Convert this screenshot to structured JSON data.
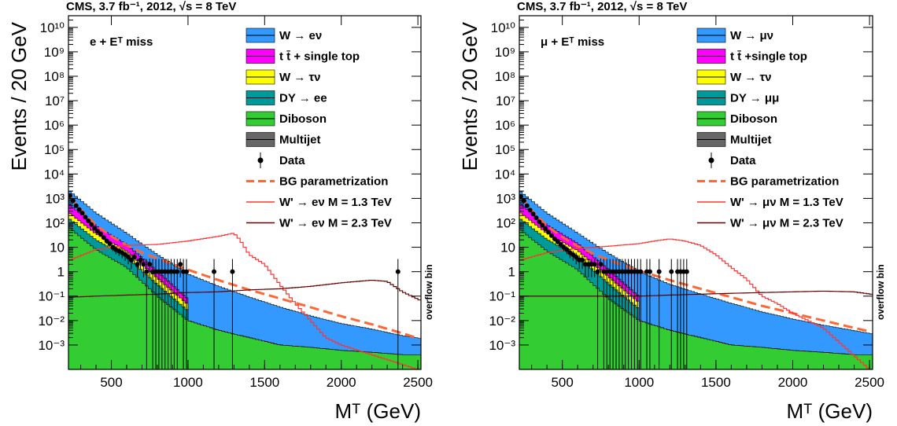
{
  "colors": {
    "w_lnu": "#3399ff",
    "ttbar": "#ff00ff",
    "w_taunu": "#ffff00",
    "dy": "#009999",
    "diboson": "#33cc33",
    "multijet": "#666666",
    "bg_param": "#ff6633",
    "wprime_low": "#ff3333",
    "wprime_high": "#660000",
    "data": "#000000"
  },
  "chart_data": [
    {
      "type": "bar",
      "histtype": "stacked",
      "title": "CMS,  3.7 fb⁻¹,  2012, √s = 8 TeV",
      "channel": "e + Eᵀ miss",
      "xlabel": "Mᵀ (GeV)",
      "ylabel": "Events / 20 GeV",
      "xlim": [
        220,
        2520
      ],
      "ylim": [
        0.0001,
        30000000000
      ],
      "yscale": "log",
      "x_ticks": [
        "500",
        "1000",
        "1500",
        "2000",
        "2500"
      ],
      "y_ticks": [
        "10⁻³",
        "10⁻²",
        "10⁻¹",
        "1",
        "10",
        "10²",
        "10³",
        "10⁴",
        "10⁵",
        "10⁶",
        "10⁷",
        "10⁸",
        "10⁹",
        "10¹⁰"
      ],
      "overflow_label": "overflow bin",
      "legend_position": "top-right",
      "stack": [
        {
          "name": "Diboson",
          "color": "#33cc33",
          "x": [
            230,
            400,
            600,
            800,
            1000,
            1200,
            1400,
            1600,
            1800,
            2000,
            2200,
            2400,
            2510
          ],
          "y": [
            60,
            8,
            1.5,
            0.1,
            0.01,
            0.004,
            0.002,
            0.001,
            0.0008,
            0.0006,
            0.0005,
            0.0004,
            0.0004
          ]
        },
        {
          "name": "DY → ee",
          "color": "#009999",
          "x": [
            230,
            400,
            600,
            800,
            1000
          ],
          "y": [
            80,
            12,
            2.5,
            0.2,
            0.015
          ]
        },
        {
          "name": "W → τν",
          "color": "#ffff00",
          "x": [
            230,
            400,
            600,
            800,
            1000
          ],
          "y": [
            100,
            15,
            3,
            0.25,
            0.02
          ]
        },
        {
          "name": "t t̄ + single top",
          "color": "#ff00ff",
          "x": [
            230,
            400,
            600,
            800,
            1000
          ],
          "y": [
            300,
            40,
            6,
            0.5,
            0.03
          ]
        },
        {
          "name": "W → eν",
          "color": "#3399ff",
          "x": [
            230,
            400,
            600,
            800,
            1000,
            1200,
            1400,
            1600,
            1800,
            2000,
            2200,
            2400,
            2510
          ],
          "y": [
            1400,
            180,
            25,
            4,
            0.8,
            0.25,
            0.09,
            0.035,
            0.015,
            0.007,
            0.004,
            0.002,
            0.0015
          ]
        }
      ],
      "legend": [
        {
          "label": "W → eν",
          "kind": "box",
          "color": "#3399ff"
        },
        {
          "label": "t t̄ + single top",
          "kind": "box",
          "color": "#ff00ff"
        },
        {
          "label": "W → τν",
          "kind": "box",
          "color": "#ffff00"
        },
        {
          "label": "DY → ee",
          "kind": "box",
          "color": "#009999"
        },
        {
          "label": "Diboson",
          "kind": "box",
          "color": "#33cc33"
        },
        {
          "label": "Multijet",
          "kind": "box",
          "color": "#666666"
        },
        {
          "label": "Data",
          "kind": "marker",
          "color": "#000000"
        },
        {
          "label": "BG parametrization",
          "kind": "dash",
          "color": "#ff6633"
        },
        {
          "label": "W' → eν M = 1.3 TeV",
          "kind": "line",
          "color": "#ff3333"
        },
        {
          "label": "W' → eν M = 2.3 TeV",
          "kind": "line",
          "color": "#660000"
        }
      ],
      "series": [
        {
          "name": "BG parametrization",
          "style": "dash",
          "color": "#ff6633",
          "x": [
            230,
            300,
            400,
            500,
            600,
            700,
            800,
            1000,
            1200,
            1400,
            1600,
            1800,
            2000,
            2200,
            2400,
            2510
          ],
          "y": [
            1200,
            350,
            80,
            28,
            12,
            6,
            3.5,
            1.2,
            0.45,
            0.18,
            0.08,
            0.035,
            0.015,
            0.007,
            0.003,
            0.0018
          ]
        },
        {
          "name": "W' → eν M = 1.3 TeV",
          "style": "line",
          "color": "#ff3333",
          "x": [
            230,
            400,
            600,
            800,
            1000,
            1200,
            1300,
            1340,
            1400,
            1500,
            1600,
            1700,
            1800,
            1900,
            2000,
            2500
          ],
          "y": [
            3,
            8,
            12,
            13,
            18,
            28,
            38,
            20,
            5,
            2,
            0.3,
            0.05,
            0.01,
            0.002,
            0.001,
            0.0001
          ]
        },
        {
          "name": "W' → eν M = 2.3 TeV",
          "style": "line",
          "color": "#660000",
          "x": [
            230,
            400,
            600,
            800,
            1000,
            1200,
            1400,
            1600,
            1800,
            2000,
            2200,
            2300,
            2400,
            2510
          ],
          "y": [
            0.09,
            0.1,
            0.11,
            0.12,
            0.14,
            0.15,
            0.18,
            0.2,
            0.25,
            0.35,
            0.45,
            0.4,
            0.15,
            0.07
          ]
        }
      ],
      "data_points": {
        "name": "Data",
        "x": [
          230,
          250,
          270,
          290,
          310,
          330,
          350,
          370,
          390,
          410,
          430,
          450,
          470,
          490,
          510,
          530,
          550,
          570,
          590,
          610,
          630,
          650,
          670,
          690,
          710,
          730,
          750,
          770,
          790,
          810,
          830,
          850,
          870,
          890,
          910,
          930,
          950,
          970,
          990,
          1170,
          1290,
          2370
        ],
        "y": [
          1300,
          800,
          500,
          350,
          250,
          170,
          120,
          85,
          60,
          45,
          35,
          25,
          18,
          14,
          10,
          8,
          7,
          6,
          5,
          4,
          3,
          4,
          2,
          3,
          2,
          1,
          2,
          1,
          1,
          1,
          1,
          1,
          1,
          1,
          1,
          1,
          2,
          1,
          1,
          1,
          1,
          1
        ]
      }
    },
    {
      "type": "bar",
      "histtype": "stacked",
      "title": "CMS,  3.7 fb⁻¹,  2012, √s = 8 TeV",
      "channel": "μ + Eᵀ miss",
      "xlabel": "Mᵀ (GeV)",
      "ylabel": "Events / 20 GeV",
      "xlim": [
        220,
        2520
      ],
      "ylim": [
        0.0001,
        30000000000
      ],
      "yscale": "log",
      "x_ticks": [
        "500",
        "1000",
        "1500",
        "2000",
        "2500"
      ],
      "y_ticks": [
        "10⁻³",
        "10⁻²",
        "10⁻¹",
        "1",
        "10",
        "10²",
        "10³",
        "10⁴",
        "10⁵",
        "10⁶",
        "10⁷",
        "10⁸",
        "10⁹",
        "10¹⁰"
      ],
      "overflow_label": "overflow bin",
      "legend_position": "top-right",
      "stack": [
        {
          "name": "Diboson",
          "color": "#33cc33",
          "x": [
            230,
            400,
            600,
            800,
            1000,
            1200,
            1400,
            1600,
            1800,
            2000,
            2200,
            2400,
            2510
          ],
          "y": [
            50,
            7,
            1.2,
            0.08,
            0.01,
            0.004,
            0.002,
            0.001,
            0.0008,
            0.0006,
            0.0005,
            0.0004,
            0.0004
          ]
        },
        {
          "name": "DY → μμ",
          "color": "#009999",
          "x": [
            230,
            400,
            600,
            800,
            1000
          ],
          "y": [
            90,
            14,
            3,
            0.25,
            0.02
          ]
        },
        {
          "name": "W → τν",
          "color": "#ffff00",
          "x": [
            230,
            400,
            600,
            800,
            1000
          ],
          "y": [
            110,
            16,
            3.2,
            0.3,
            0.025
          ]
        },
        {
          "name": "t t̄ +single top",
          "color": "#ff00ff",
          "x": [
            230,
            400,
            600,
            800,
            1000
          ],
          "y": [
            320,
            45,
            7,
            0.6,
            0.04
          ]
        },
        {
          "name": "W → μν",
          "color": "#3399ff",
          "x": [
            230,
            400,
            600,
            800,
            1000,
            1200,
            1400,
            1600,
            1800,
            2000,
            2200,
            2400,
            2510
          ],
          "y": [
            1300,
            170,
            24,
            4.5,
            1,
            0.3,
            0.12,
            0.05,
            0.022,
            0.011,
            0.006,
            0.0035,
            0.0025
          ]
        }
      ],
      "legend": [
        {
          "label": "W → μν",
          "kind": "box",
          "color": "#3399ff"
        },
        {
          "label": "t t̄ +single top",
          "kind": "box",
          "color": "#ff00ff"
        },
        {
          "label": "W → τν",
          "kind": "box",
          "color": "#ffff00"
        },
        {
          "label": "DY → μμ",
          "kind": "box",
          "color": "#009999"
        },
        {
          "label": "Diboson",
          "kind": "box",
          "color": "#33cc33"
        },
        {
          "label": "Multijet",
          "kind": "box",
          "color": "#666666"
        },
        {
          "label": "Data",
          "kind": "marker",
          "color": "#000000"
        },
        {
          "label": "BG parametrization",
          "kind": "dash",
          "color": "#ff6633"
        },
        {
          "label": "W' → μν M = 1.3 TeV",
          "kind": "line",
          "color": "#ff3333"
        },
        {
          "label": "W' → μν M = 2.3 TeV",
          "kind": "line",
          "color": "#660000"
        }
      ],
      "series": [
        {
          "name": "BG parametrization",
          "style": "dash",
          "color": "#ff6633",
          "x": [
            230,
            300,
            400,
            500,
            600,
            700,
            800,
            1000,
            1200,
            1400,
            1600,
            1800,
            2000,
            2200,
            2400,
            2510
          ],
          "y": [
            1200,
            330,
            75,
            26,
            11,
            5.5,
            3,
            1.1,
            0.45,
            0.2,
            0.09,
            0.04,
            0.02,
            0.01,
            0.005,
            0.0035
          ]
        },
        {
          "name": "W' → μν M = 1.3 TeV",
          "style": "line",
          "color": "#ff3333",
          "x": [
            230,
            400,
            600,
            800,
            1000,
            1100,
            1200,
            1300,
            1400,
            1500,
            1600,
            1700,
            1800,
            1900,
            2000,
            2100,
            2200,
            2500
          ],
          "y": [
            3,
            6,
            9,
            11,
            14,
            18,
            22,
            18,
            12,
            5,
            1.5,
            0.5,
            0.1,
            0.05,
            0.02,
            0.01,
            0.005,
            0.0001
          ]
        },
        {
          "name": "W' → μν M = 2.3 TeV",
          "style": "line",
          "color": "#660000",
          "x": [
            230,
            400,
            600,
            800,
            1000,
            1200,
            1400,
            1600,
            1800,
            2000,
            2200,
            2400,
            2510
          ],
          "y": [
            0.1,
            0.1,
            0.1,
            0.1,
            0.1,
            0.11,
            0.12,
            0.13,
            0.14,
            0.15,
            0.16,
            0.15,
            0.12
          ]
        }
      ],
      "data_points": {
        "name": "Data",
        "x": [
          230,
          250,
          270,
          290,
          310,
          330,
          350,
          370,
          390,
          410,
          430,
          450,
          470,
          490,
          510,
          530,
          550,
          570,
          590,
          610,
          630,
          650,
          670,
          690,
          710,
          730,
          750,
          770,
          790,
          810,
          830,
          850,
          870,
          890,
          910,
          930,
          950,
          970,
          990,
          1010,
          1050,
          1070,
          1130,
          1210,
          1250,
          1270,
          1290,
          1310
        ],
        "y": [
          1200,
          800,
          500,
          330,
          230,
          160,
          110,
          80,
          58,
          42,
          30,
          22,
          17,
          13,
          10,
          8,
          6,
          5,
          4,
          3,
          3,
          2,
          2,
          2,
          2,
          1,
          2,
          1,
          1,
          1,
          1,
          1,
          1,
          1,
          1,
          1,
          1,
          1,
          1,
          1,
          1,
          1,
          1,
          1,
          1,
          1,
          1,
          1
        ]
      }
    }
  ]
}
